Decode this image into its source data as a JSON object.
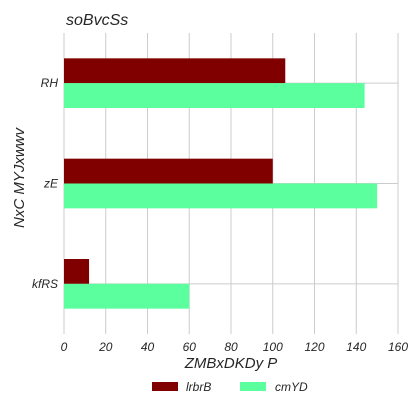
{
  "chart_data": {
    "type": "bar",
    "orientation": "horizontal",
    "title": "soBvcSs",
    "xlabel": "ZMBxDKDy P",
    "ylabel": "NxC MYJxwwv",
    "categories": [
      "RH",
      "zE",
      "kfRS"
    ],
    "xlim": [
      0,
      160
    ],
    "xticks": [
      0,
      20,
      40,
      60,
      80,
      100,
      120,
      140,
      160
    ],
    "grid": true,
    "legend_position": "bottom-center",
    "series": [
      {
        "name": "lrbrB",
        "color": "#800000",
        "values": [
          106,
          100,
          12
        ]
      },
      {
        "name": "cmYD",
        "color": "#5cff9d",
        "values": [
          144,
          150,
          60
        ]
      }
    ]
  }
}
